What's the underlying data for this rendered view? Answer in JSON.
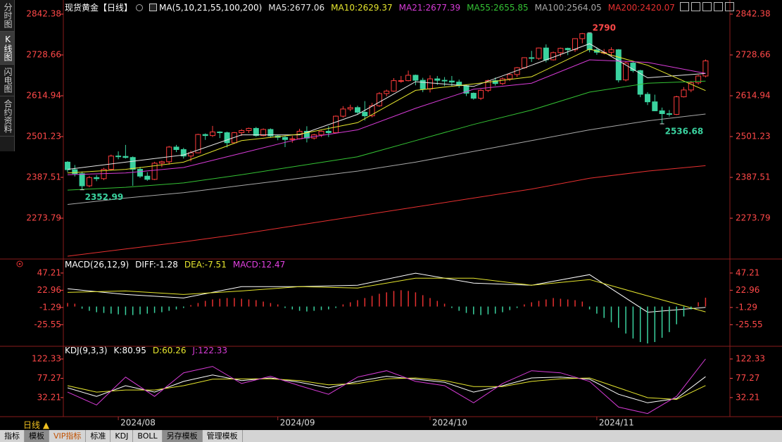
{
  "chart_data": [
    {
      "type": "candlestick",
      "title": "现货黄金【日线】",
      "indicator": "MA(5,10,21,55,100,200)",
      "up_color": "#ff3c3c",
      "down_color": "#3ad29f",
      "ohlc": [
        [
          2430,
          2433,
          2402,
          2409
        ],
        [
          2409,
          2422,
          2390,
          2398
        ],
        [
          2398,
          2404,
          2352.99,
          2364
        ],
        [
          2364,
          2392,
          2360,
          2387
        ],
        [
          2387,
          2394,
          2377,
          2384
        ],
        [
          2384,
          2414,
          2380,
          2410
        ],
        [
          2410,
          2451,
          2408,
          2447
        ],
        [
          2447,
          2460,
          2438,
          2446
        ],
        [
          2446,
          2478,
          2440,
          2443
        ],
        [
          2443,
          2446,
          2364,
          2410
        ],
        [
          2410,
          2417,
          2386,
          2391
        ],
        [
          2391,
          2402,
          2378,
          2382
        ],
        [
          2382,
          2431,
          2380,
          2427
        ],
        [
          2427,
          2434,
          2416,
          2431
        ],
        [
          2431,
          2475,
          2423,
          2472
        ],
        [
          2472,
          2478,
          2458,
          2465
        ],
        [
          2465,
          2470,
          2440,
          2447
        ],
        [
          2447,
          2462,
          2432,
          2456
        ],
        [
          2456,
          2509,
          2455,
          2507
        ],
        [
          2507,
          2510,
          2492,
          2504
        ],
        [
          2504,
          2531,
          2500,
          2514
        ],
        [
          2514,
          2516,
          2497,
          2512
        ],
        [
          2512,
          2515,
          2471,
          2484
        ],
        [
          2484,
          2514,
          2481,
          2512
        ],
        [
          2512,
          2522,
          2503,
          2518
        ],
        [
          2518,
          2526,
          2511,
          2524
        ],
        [
          2524,
          2528,
          2501,
          2504
        ],
        [
          2504,
          2524,
          2502,
          2521
        ],
        [
          2521,
          2524,
          2499,
          2503
        ],
        [
          2503,
          2506,
          2491,
          2499
        ],
        [
          2499,
          2503,
          2472,
          2493
        ],
        [
          2493,
          2503,
          2484,
          2495
        ],
        [
          2495,
          2523,
          2493,
          2516
        ],
        [
          2516,
          2530,
          2485,
          2497
        ],
        [
          2497,
          2509,
          2493,
          2506
        ],
        [
          2506,
          2518,
          2500,
          2516
        ],
        [
          2516,
          2530,
          2500,
          2512
        ],
        [
          2512,
          2560,
          2510,
          2558
        ],
        [
          2558,
          2586,
          2554,
          2578
        ],
        [
          2578,
          2590,
          2572,
          2582
        ],
        [
          2582,
          2587,
          2563,
          2569
        ],
        [
          2569,
          2600,
          2546,
          2559
        ],
        [
          2559,
          2595,
          2555,
          2587
        ],
        [
          2587,
          2625,
          2584,
          2621
        ],
        [
          2621,
          2632,
          2613,
          2628
        ],
        [
          2628,
          2664,
          2626,
          2657
        ],
        [
          2657,
          2670,
          2651,
          2657
        ],
        [
          2657,
          2685,
          2655,
          2672
        ],
        [
          2672,
          2674,
          2644,
          2658
        ],
        [
          2658,
          2665,
          2625,
          2634
        ],
        [
          2634,
          2672,
          2624,
          2662
        ],
        [
          2662,
          2670,
          2645,
          2658
        ],
        [
          2658,
          2667,
          2642,
          2656
        ],
        [
          2656,
          2670,
          2642,
          2653
        ],
        [
          2653,
          2660,
          2637,
          2643
        ],
        [
          2643,
          2646,
          2614,
          2622
        ],
        [
          2622,
          2624,
          2604,
          2608
        ],
        [
          2608,
          2633,
          2603,
          2630
        ],
        [
          2630,
          2660,
          2625,
          2657
        ],
        [
          2657,
          2666,
          2643,
          2649
        ],
        [
          2649,
          2666,
          2645,
          2662
        ],
        [
          2662,
          2678,
          2656,
          2674
        ],
        [
          2674,
          2695,
          2667,
          2693
        ],
        [
          2693,
          2722,
          2690,
          2721
        ],
        [
          2721,
          2740,
          2709,
          2719
        ],
        [
          2719,
          2749,
          2715,
          2748
        ],
        [
          2748,
          2758,
          2708,
          2715
        ],
        [
          2715,
          2738,
          2713,
          2735
        ],
        [
          2735,
          2749,
          2724,
          2747
        ],
        [
          2747,
          2749,
          2728,
          2743
        ],
        [
          2743,
          2775,
          2737,
          2774
        ],
        [
          2774,
          2789.95,
          2761,
          2788
        ],
        [
          2788,
          2790,
          2736,
          2743
        ],
        [
          2743,
          2750,
          2729,
          2736
        ],
        [
          2736,
          2745,
          2730,
          2736
        ],
        [
          2736,
          2750,
          2724,
          2743
        ],
        [
          2743,
          2745,
          2652,
          2659
        ],
        [
          2659,
          2711,
          2655,
          2706
        ],
        [
          2706,
          2710,
          2680,
          2685
        ],
        [
          2685,
          2687,
          2611,
          2619
        ],
        [
          2619,
          2625,
          2589,
          2598
        ],
        [
          2598,
          2618,
          2572,
          2573
        ],
        [
          2573,
          2582,
          2536.68,
          2565
        ],
        [
          2565,
          2575,
          2557,
          2563
        ],
        [
          2563,
          2615,
          2561,
          2612
        ],
        [
          2612,
          2639,
          2610,
          2631
        ],
        [
          2631,
          2656,
          2625,
          2651
        ],
        [
          2651,
          2673,
          2646,
          2670
        ],
        [
          2670,
          2716,
          2666,
          2712
        ]
      ],
      "series": [
        {
          "name": "MA5:",
          "color": "#e8e8e8",
          "x": [
            0,
            8,
            16,
            24,
            32,
            40,
            48,
            56,
            64,
            72,
            80,
            88
          ],
          "values": [
            2410,
            2430,
            2450,
            2506,
            2506,
            2563,
            2654,
            2641,
            2700,
            2760,
            2665,
            2677.06
          ]
        },
        {
          "name": "MA10:",
          "color": "#e6e62e",
          "x": [
            0,
            8,
            16,
            24,
            32,
            40,
            48,
            56,
            64,
            72,
            80,
            88
          ],
          "values": [
            2400,
            2410,
            2430,
            2490,
            2508,
            2540,
            2630,
            2648,
            2668,
            2745,
            2700,
            2629.37
          ]
        },
        {
          "name": "MA21:",
          "color": "#d83cd8",
          "x": [
            0,
            8,
            16,
            24,
            32,
            40,
            48,
            56,
            64,
            72,
            80,
            88
          ],
          "values": [
            2395,
            2400,
            2415,
            2455,
            2495,
            2520,
            2580,
            2633,
            2650,
            2715,
            2708,
            2677.39
          ]
        },
        {
          "name": "MA55:",
          "color": "#34c234",
          "x": [
            0,
            8,
            16,
            24,
            32,
            40,
            48,
            56,
            64,
            72,
            80,
            88
          ],
          "values": [
            2352,
            2360,
            2372,
            2395,
            2420,
            2445,
            2490,
            2535,
            2575,
            2625,
            2650,
            2655.85
          ]
        },
        {
          "name": "MA100:",
          "color": "#a8a8a8",
          "x": [
            0,
            8,
            16,
            24,
            32,
            40,
            48,
            56,
            64,
            72,
            80,
            88
          ],
          "values": [
            2312,
            2330,
            2345,
            2365,
            2385,
            2405,
            2430,
            2460,
            2490,
            2520,
            2545,
            2564.05
          ]
        },
        {
          "name": "MA200:",
          "color": "#e83030",
          "x": [
            0,
            8,
            16,
            24,
            32,
            40,
            48,
            56,
            64,
            72,
            80,
            88
          ],
          "values": [
            2168,
            2188,
            2208,
            2230,
            2255,
            2280,
            2305,
            2330,
            2355,
            2385,
            2405,
            2420.07
          ]
        }
      ],
      "ylim": [
        2166,
        2866
      ],
      "yticks": [
        2842.38,
        2728.66,
        2614.94,
        2501.23,
        2387.51,
        2273.79
      ],
      "xticks": [
        {
          "value": 7,
          "label": "2024/08"
        },
        {
          "value": 29,
          "label": "2024/09"
        },
        {
          "value": 50,
          "label": "2024/10"
        },
        {
          "value": 73,
          "label": "2024/11"
        }
      ]
    },
    {
      "type": "combo",
      "title": "MACD(26,12,9)",
      "series": [
        {
          "name": "DIFF:",
          "kind": "line",
          "color": "#ffffff",
          "x": [
            0,
            8,
            16,
            24,
            32,
            40,
            48,
            56,
            64,
            72,
            80,
            88
          ],
          "values": [
            25,
            17,
            12,
            28,
            28,
            30,
            47,
            33,
            30,
            45,
            -8,
            -1.28
          ]
        },
        {
          "name": "DEA:",
          "kind": "line",
          "color": "#e6e62e",
          "x": [
            0,
            8,
            16,
            24,
            32,
            40,
            48,
            56,
            64,
            72,
            80,
            88
          ],
          "values": [
            20,
            22,
            17,
            22,
            28,
            26,
            40,
            40,
            30,
            38,
            15,
            -7.51
          ]
        },
        {
          "name": "MACD:",
          "kind": "bar",
          "color": "#e040e0",
          "up_color": "#e83030",
          "down_color": "#3ad29f",
          "values": [
            5,
            4,
            -3,
            -6,
            -8,
            -9,
            -10,
            -11,
            -12,
            -12,
            -11,
            -10,
            -9,
            -8,
            -6,
            -4,
            -2,
            2,
            5,
            8,
            10,
            11,
            12,
            12,
            11,
            10,
            9,
            7,
            5,
            3,
            -2,
            -4,
            -6,
            -7,
            -6,
            -5,
            -4,
            -2,
            3,
            6,
            9,
            12,
            15,
            18,
            20,
            22,
            23,
            22,
            20,
            16,
            12,
            8,
            4,
            -2,
            -6,
            -9,
            -11,
            -12,
            -11,
            -10,
            -8,
            -5,
            -2,
            3,
            6,
            8,
            10,
            12,
            11,
            10,
            9,
            7,
            -4,
            -10,
            -16,
            -22,
            -30,
            -38,
            -45,
            -50,
            -52,
            -50,
            -44,
            -36,
            -25,
            -14,
            -4,
            6,
            12.47
          ]
        }
      ],
      "ylim": [
        -54,
        63
      ],
      "yticks": [
        47.21,
        22.96,
        -1.29,
        -25.55
      ]
    },
    {
      "type": "line",
      "title": "KDJ(9,3,3)",
      "series": [
        {
          "name": "K:",
          "color": "#ffffff",
          "x": [
            0,
            4,
            8,
            12,
            16,
            20,
            24,
            28,
            32,
            36,
            40,
            44,
            48,
            52,
            56,
            60,
            64,
            68,
            72,
            76,
            80,
            84,
            88
          ],
          "values": [
            55,
            35,
            60,
            45,
            70,
            85,
            72,
            78,
            68,
            55,
            70,
            82,
            75,
            68,
            45,
            60,
            78,
            80,
            75,
            40,
            20,
            30,
            80.95
          ]
        },
        {
          "name": "D:",
          "color": "#e6e62e",
          "x": [
            0,
            4,
            8,
            12,
            16,
            20,
            24,
            28,
            32,
            36,
            40,
            44,
            48,
            52,
            56,
            60,
            64,
            68,
            72,
            76,
            80,
            84,
            88
          ],
          "values": [
            60,
            45,
            50,
            50,
            60,
            75,
            76,
            76,
            72,
            62,
            65,
            76,
            78,
            72,
            58,
            58,
            70,
            76,
            78,
            55,
            32,
            28,
            60.26
          ]
        },
        {
          "name": "J:",
          "color": "#d83cd8",
          "x": [
            0,
            4,
            8,
            12,
            16,
            20,
            24,
            28,
            32,
            36,
            40,
            44,
            48,
            52,
            56,
            60,
            64,
            68,
            72,
            76,
            80,
            84,
            88
          ],
          "values": [
            45,
            15,
            80,
            35,
            90,
            105,
            65,
            82,
            60,
            40,
            80,
            95,
            70,
            60,
            20,
            65,
            95,
            90,
            70,
            10,
            -5,
            35,
            122.33
          ]
        }
      ],
      "ylim": [
        -9,
        147
      ],
      "yticks": [
        122.33,
        77.27,
        32.21
      ]
    }
  ],
  "sidebar": [
    "分时图",
    "K线图",
    "闪电图",
    "合约资料"
  ],
  "period": "日线 ▲",
  "tabs": [
    "指标",
    "模板",
    "VIP指标",
    "标准",
    "KDJ",
    "BOLL",
    "另存模板",
    "管理模板"
  ]
}
